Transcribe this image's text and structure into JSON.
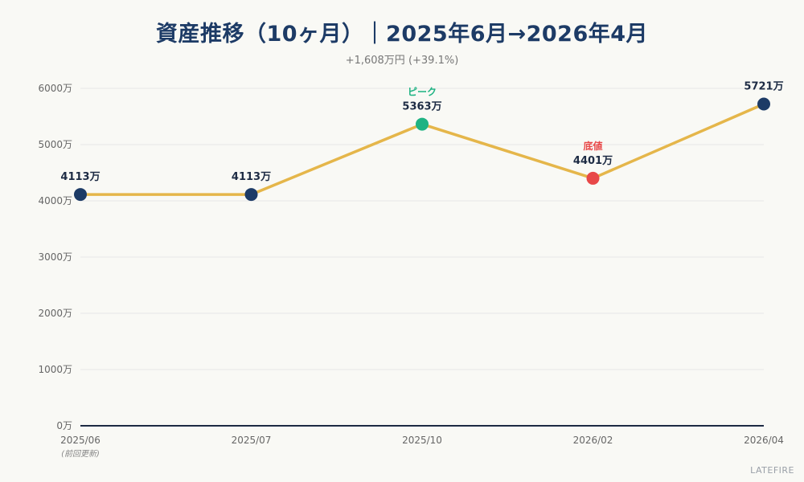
{
  "chart_data": {
    "type": "line",
    "title": "資産推移（10ヶ月）｜2025年6月→2026年4月",
    "subtitle": "+1,608万円 (+39.1%)",
    "categories": [
      "2025/06",
      "2025/07",
      "2025/10",
      "2026/02",
      "2026/04"
    ],
    "category_notes": [
      "(前回更新)",
      "",
      "",
      "",
      ""
    ],
    "series": [
      {
        "values": [
          4113,
          4113,
          5363,
          4401,
          5721
        ],
        "labels": [
          "4113万",
          "4113万",
          "5363万",
          "4401万",
          "5721万"
        ],
        "color": "#e5b64a"
      }
    ],
    "annotations": [
      {
        "index": 2,
        "text": "ピーク",
        "color": "#1fb383"
      },
      {
        "index": 3,
        "text": "底値",
        "color": "#e84848"
      }
    ],
    "point_colors": [
      "#1d3b66",
      "#1d3b66",
      "#1fb383",
      "#e84848",
      "#1d3b66"
    ],
    "y_ticks": [
      "0万",
      "1000万",
      "2000万",
      "3000万",
      "4000万",
      "5000万",
      "6000万"
    ],
    "ylim": [
      0,
      6000
    ],
    "grid": true,
    "watermark": "LATEFIRE"
  }
}
